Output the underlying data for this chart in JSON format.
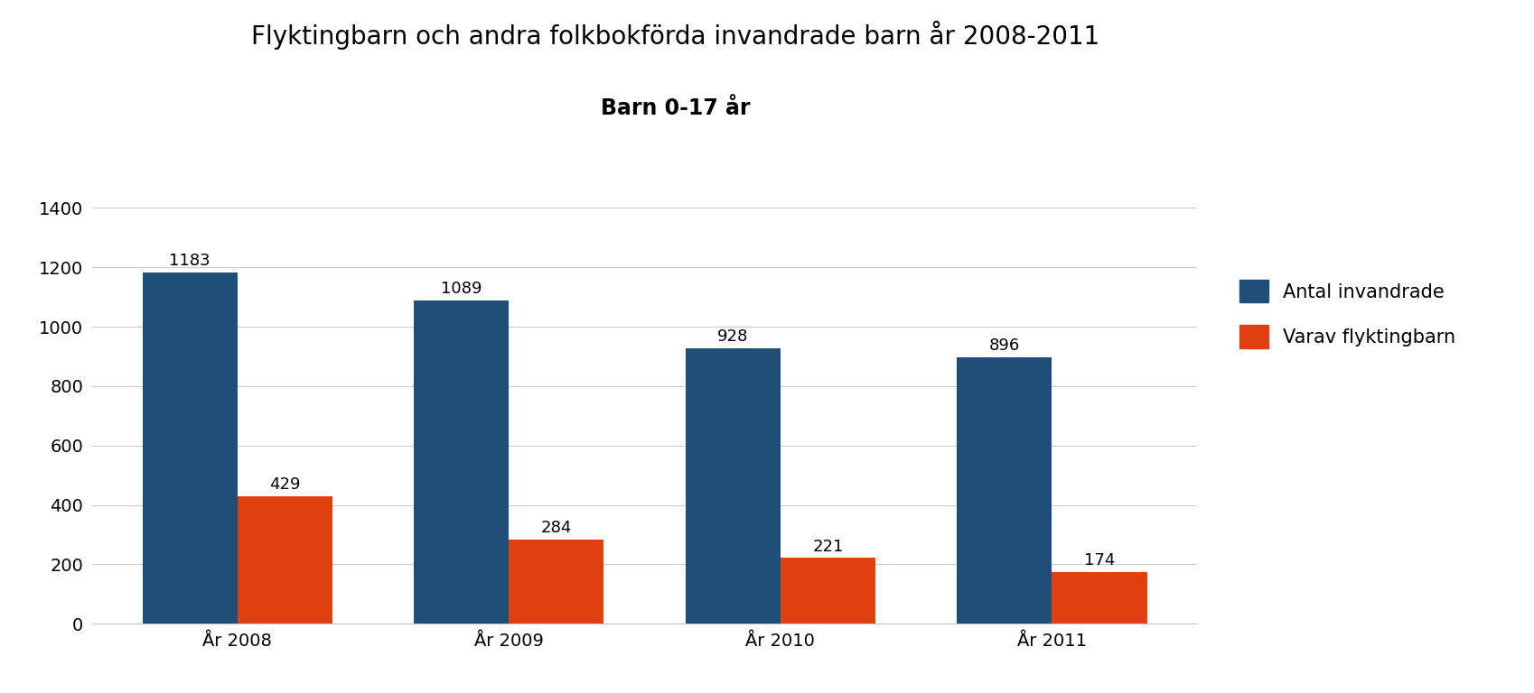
{
  "title": "Flyktingbarn och andra folkbokförda invandrade barn år 2008-2011",
  "subtitle": "Barn 0-17 år",
  "categories": [
    "År 2008",
    "År 2009",
    "År 2010",
    "År 2011"
  ],
  "invandrade": [
    1183,
    1089,
    928,
    896
  ],
  "flyktingbarn": [
    429,
    284,
    221,
    174
  ],
  "bar_color_invandrade": "#1F4E79",
  "bar_color_flyktingbarn": "#E04010",
  "ylim": [
    0,
    1400
  ],
  "yticks": [
    0,
    200,
    400,
    600,
    800,
    1000,
    1200,
    1400
  ],
  "legend_labels": [
    "Antal invandrade",
    "Varav flyktingbarn"
  ],
  "title_fontsize": 20,
  "subtitle_fontsize": 17,
  "label_fontsize": 13,
  "tick_fontsize": 14,
  "legend_fontsize": 15,
  "bar_width": 0.35,
  "background_color": "#ffffff",
  "grid_color": "#cccccc"
}
